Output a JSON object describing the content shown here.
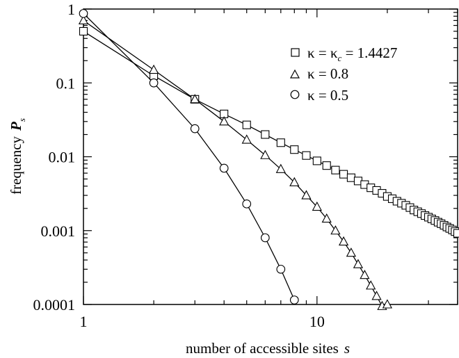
{
  "chart_data": {
    "type": "scatter",
    "xlabel": "number of accessible sites",
    "xlabel_var": "s",
    "ylabel": "frequency",
    "ylabel_var": "P",
    "ylabel_sub": "s",
    "x_scale": "log",
    "y_scale": "log",
    "xlim": [
      1,
      40
    ],
    "ylim": [
      0.0001,
      1
    ],
    "grid": false,
    "legend_position": "top-right",
    "x_ticks": [
      {
        "value": 1,
        "label": "1"
      },
      {
        "value": 10,
        "label": "10"
      }
    ],
    "y_ticks": [
      {
        "value": 1,
        "label": "1"
      },
      {
        "value": 0.1,
        "label": "0.1"
      },
      {
        "value": 0.01,
        "label": "0.01"
      },
      {
        "value": 0.001,
        "label": "0.001"
      },
      {
        "value": 0.0001,
        "label": "0.0001"
      }
    ],
    "series": [
      {
        "marker": "square",
        "legend_symbol": "κ",
        "legend_sub": "c",
        "legend_rest": " = 1.4427",
        "legend_prefix": "κ = ",
        "x": [
          1,
          2,
          3,
          4,
          5,
          6,
          7,
          8,
          9,
          10,
          11,
          12,
          13,
          14,
          15,
          16,
          17,
          18,
          19,
          20,
          21,
          22,
          23,
          24,
          25,
          26,
          27,
          28,
          29,
          30,
          31,
          32,
          33,
          34,
          35,
          36,
          37,
          38,
          39,
          40
        ],
        "y": [
          0.5,
          0.125,
          0.06,
          0.038,
          0.027,
          0.02,
          0.0155,
          0.0125,
          0.0104,
          0.0088,
          0.0076,
          0.0066,
          0.0058,
          0.0052,
          0.0047,
          0.0042,
          0.0038,
          0.0035,
          0.0032,
          0.0029,
          0.0027,
          0.0025,
          0.00235,
          0.0022,
          0.00205,
          0.0019,
          0.0018,
          0.0017,
          0.0016,
          0.00152,
          0.00144,
          0.00137,
          0.0013,
          0.00124,
          0.00118,
          0.00112,
          0.00107,
          0.00102,
          0.00097,
          0.00092
        ]
      },
      {
        "marker": "triangle",
        "legend_label": "κ = 0.8",
        "x": [
          1,
          2,
          3,
          4,
          5,
          6,
          7,
          8,
          9,
          10,
          11,
          12,
          13,
          14,
          15,
          16,
          17,
          18,
          19,
          20
        ],
        "y": [
          0.7,
          0.15,
          0.06,
          0.03,
          0.017,
          0.0105,
          0.0068,
          0.0045,
          0.003,
          0.0021,
          0.00145,
          0.001,
          0.00071,
          0.0005,
          0.00035,
          0.00025,
          0.00018,
          0.00013,
          9.5e-05,
          0.0001
        ]
      },
      {
        "marker": "circle",
        "legend_label": "κ = 0.5",
        "x": [
          1,
          2,
          3,
          4,
          5,
          6,
          7,
          8
        ],
        "y": [
          0.87,
          0.1,
          0.024,
          0.007,
          0.0023,
          0.0008,
          0.0003,
          0.000115
        ]
      }
    ]
  }
}
